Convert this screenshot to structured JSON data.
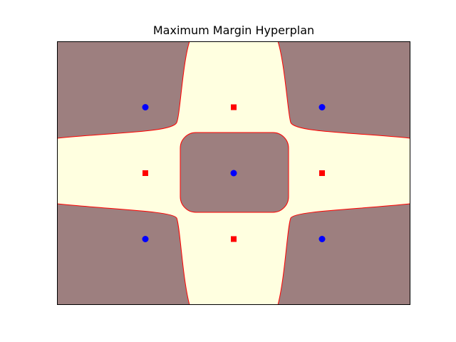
{
  "chart_data": {
    "type": "scatter",
    "title": "Maximum Margin Hyperplan",
    "xlabel": "",
    "ylabel": "",
    "xlim": [
      -2,
      2
    ],
    "ylim": [
      -1.5,
      1.5
    ],
    "axis_ticks": false,
    "grid": false,
    "background_regions": {
      "positive_color": "#ffffe0",
      "negative_color": "#9d7f7f",
      "boundary_color": "#ff0000"
    },
    "series": [
      {
        "marker": "circle",
        "color": "#0000ff",
        "points": [
          {
            "x": -1,
            "y": 0.75
          },
          {
            "x": 1,
            "y": 0.75
          },
          {
            "x": 0,
            "y": 0
          },
          {
            "x": -1,
            "y": -0.75
          },
          {
            "x": 1,
            "y": -0.75
          }
        ]
      },
      {
        "marker": "square",
        "color": "#ff0000",
        "points": [
          {
            "x": 0,
            "y": 0.75
          },
          {
            "x": -1,
            "y": 0
          },
          {
            "x": 1,
            "y": 0
          },
          {
            "x": 0,
            "y": -0.75
          }
        ]
      }
    ]
  }
}
